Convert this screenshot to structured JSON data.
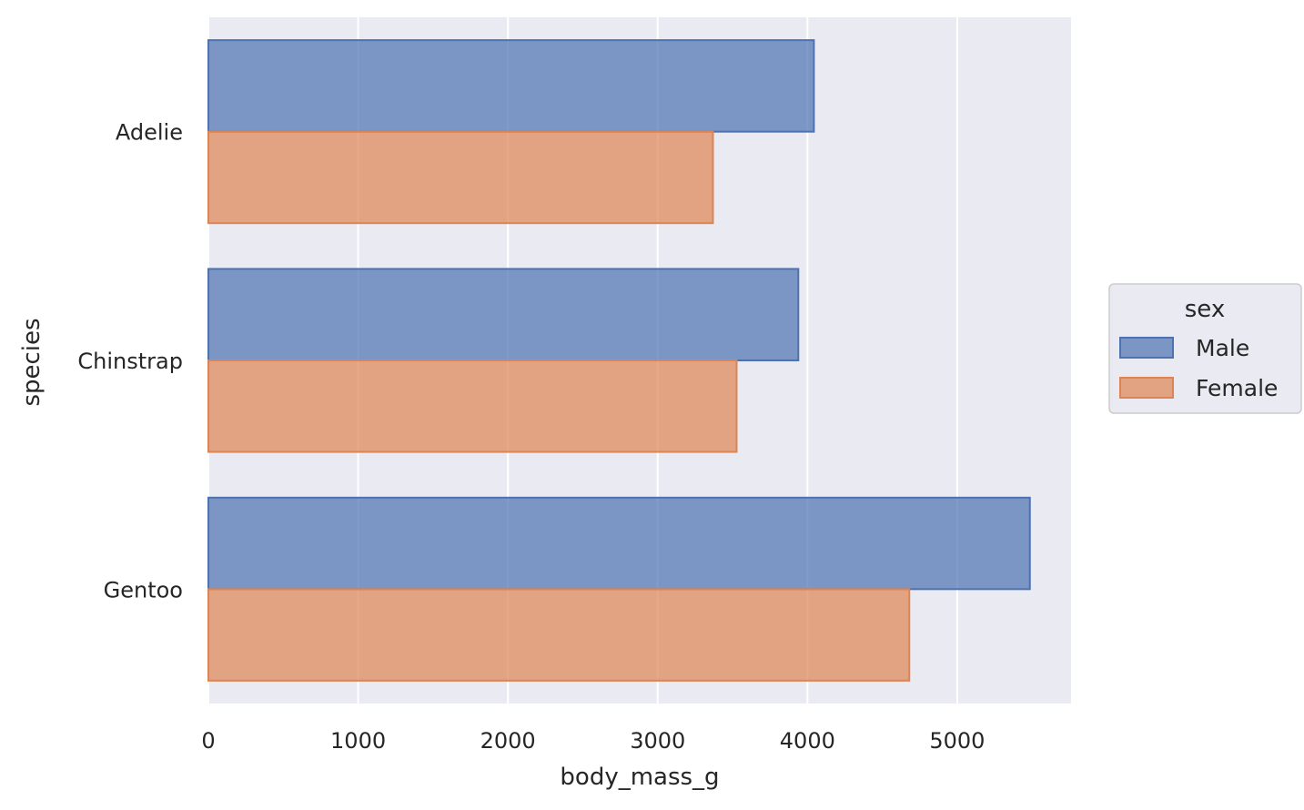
{
  "chart_data": {
    "type": "bar",
    "orientation": "horizontal",
    "categories": [
      "Adelie",
      "Chinstrap",
      "Gentoo"
    ],
    "series": [
      {
        "name": "Male",
        "values": [
          4043,
          3939,
          5485
        ],
        "fill": "#4c72b0",
        "stroke": "#4c72b0"
      },
      {
        "name": "Female",
        "values": [
          3369,
          3527,
          4680
        ],
        "fill": "#dd8452",
        "stroke": "#dd8452"
      }
    ],
    "xlabel": "body_mass_g",
    "ylabel": "species",
    "xlim": [
      0,
      5760
    ],
    "xticks": [
      0,
      1000,
      2000,
      3000,
      4000,
      5000
    ],
    "grid": true,
    "legend": {
      "title": "sex",
      "position": "right"
    },
    "colors": {
      "background": "#eaeaf2",
      "grid": "#ffffff",
      "text": "#262626"
    }
  }
}
